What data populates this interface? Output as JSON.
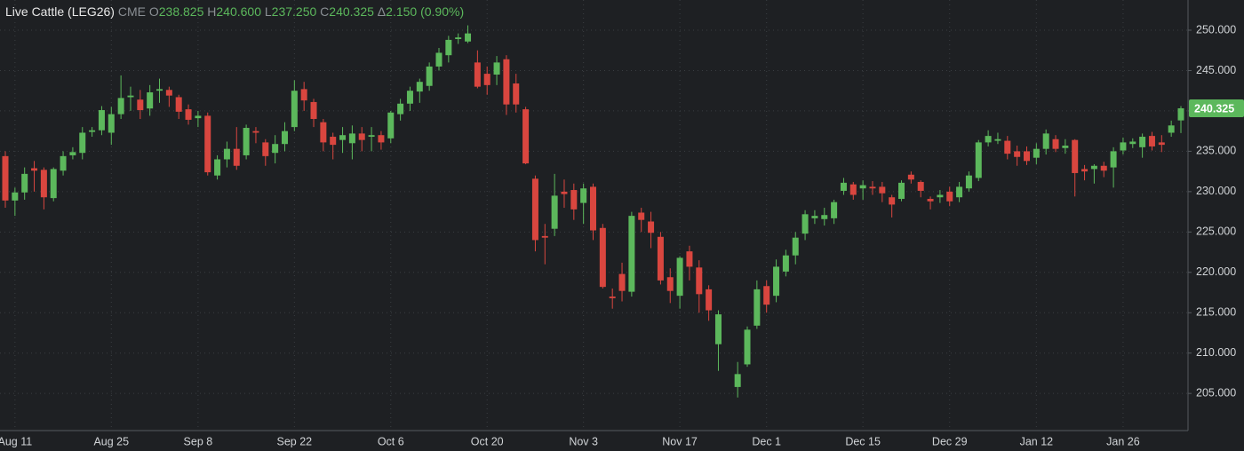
{
  "header": {
    "title": "Live Cattle (LEG26)",
    "exchange": "CME",
    "open_label": "O",
    "open": "238.825",
    "high_label": "H",
    "high": "240.600",
    "low_label": "L",
    "low": "237.250",
    "close_label": "C",
    "close": "240.325",
    "change_label": "Δ",
    "change": "2.150 (0.90%)"
  },
  "chart_data": {
    "type": "candlestick",
    "categories": [
      null,
      "Aug 11",
      null,
      null,
      null,
      null,
      null,
      null,
      null,
      null,
      null,
      "Aug 25",
      null,
      null,
      null,
      null,
      null,
      null,
      null,
      null,
      "Sep 8",
      null,
      null,
      null,
      null,
      null,
      null,
      null,
      null,
      null,
      "Sep 22",
      null,
      null,
      null,
      null,
      null,
      null,
      null,
      null,
      null,
      "Oct 6",
      null,
      null,
      null,
      null,
      null,
      null,
      null,
      null,
      null,
      "Oct 20",
      null,
      null,
      null,
      null,
      null,
      null,
      null,
      null,
      null,
      "Nov 3",
      null,
      null,
      null,
      null,
      null,
      null,
      null,
      null,
      null,
      "Nov 17",
      null,
      null,
      null,
      null,
      null,
      null,
      null,
      null,
      "Dec 1",
      null,
      null,
      null,
      null,
      null,
      null,
      null,
      null,
      null,
      "Dec 15",
      null,
      null,
      null,
      null,
      null,
      null,
      null,
      null,
      "Dec 29",
      null,
      null,
      null,
      null,
      null,
      null,
      null,
      null,
      "Jan 12",
      null,
      null,
      null,
      null,
      null,
      null,
      null,
      null,
      "Jan 26",
      null,
      null,
      null,
      null,
      null,
      null
    ],
    "open": [
      234.4,
      228.9,
      229.9,
      232.9,
      232.7,
      229.2,
      232.6,
      234.5,
      234.8,
      237.4,
      237.6,
      237.3,
      239.6,
      241.7,
      241.4,
      240.3,
      242.5,
      242.6,
      241.7,
      240.2,
      239.1,
      239.4,
      232,
      234,
      235.3,
      234.5,
      237.5,
      236.1,
      234.8,
      235.9,
      238,
      242.7,
      241.1,
      238.6,
      236.8,
      236.4,
      236,
      237.2,
      236.8,
      237,
      236.6,
      239.6,
      240.9,
      242.4,
      243.1,
      245.5,
      246.9,
      248.9,
      248.6,
      246,
      244.6,
      244.5,
      246.4,
      243.4,
      240.2,
      231.6,
      224.5,
      225.4,
      230,
      230.2,
      228.6,
      230.6,
      225.5,
      217,
      219.8,
      217.6,
      227.4,
      226.3,
      224.4,
      219.4,
      217.1,
      222.6,
      220.6,
      217.9,
      211.1,
      null,
      205.8,
      208.6,
      213.4,
      218.3,
      217.1,
      220.1,
      222.1,
      224.8,
      226.7,
      226.6,
      226.7,
      230.1,
      230.9,
      230.4,
      230.6,
      230.6,
      229.3,
      229.1,
      232.1,
      231.2,
      229.1,
      229.3,
      230,
      229.3,
      230.4,
      231.7,
      236.1,
      236.3,
      236.3,
      235,
      235,
      234.2,
      235.3,
      236.5,
      235.4,
      236.4,
      232.8,
      232.8,
      233.2,
      233,
      235.1,
      235.9,
      235.5,
      236.9,
      236.1,
      237.3,
      238.825
    ],
    "high": [
      235,
      230.5,
      233,
      233.8,
      233,
      233,
      235,
      235.5,
      238,
      238,
      240.6,
      240.5,
      244.4,
      243,
      242.6,
      243.2,
      244,
      243,
      242,
      240.8,
      240,
      239.8,
      234.5,
      236.2,
      238,
      238.3,
      238,
      236.5,
      237,
      238.6,
      243.8,
      243.6,
      241.5,
      239,
      237.3,
      238,
      238.2,
      238,
      238,
      237.5,
      240,
      241.5,
      243,
      244,
      246,
      247.8,
      249.3,
      249.6,
      250.6,
      247.5,
      245.5,
      246.8,
      246.9,
      244.6,
      240.5,
      232,
      226,
      232.2,
      231.5,
      231,
      231,
      231,
      226,
      218,
      221.2,
      227.5,
      228,
      227.5,
      225,
      220.5,
      222,
      223.3,
      221.5,
      218.4,
      215.3,
      null,
      208.9,
      213.3,
      219,
      219,
      221.6,
      222.8,
      225,
      227.7,
      227.7,
      228,
      229,
      231.7,
      231.2,
      231.4,
      231.3,
      231.2,
      229.6,
      231.4,
      232.5,
      231.4,
      229.4,
      230.2,
      230.6,
      231.2,
      232.5,
      236.4,
      237.6,
      237.3,
      236.9,
      235.7,
      235.6,
      236,
      237.7,
      237,
      236.5,
      236.5,
      233.3,
      233.4,
      233.7,
      235.5,
      236.7,
      236.6,
      237.2,
      237.4,
      237,
      238.8,
      240.6
    ],
    "low": [
      228,
      227,
      229,
      230,
      227.8,
      228.8,
      232,
      234,
      234,
      236.8,
      237,
      235.8,
      239,
      240,
      239,
      239.4,
      241,
      240.5,
      239,
      238.3,
      238,
      232,
      231.5,
      233,
      232.7,
      234,
      236,
      233.2,
      233.5,
      235,
      237.5,
      240,
      238,
      235,
      234,
      234.8,
      234,
      235,
      235,
      235.2,
      236,
      238.8,
      240,
      241,
      242.5,
      245,
      246,
      248.3,
      248.4,
      242.8,
      242,
      243.2,
      239.5,
      239.8,
      233.4,
      222.6,
      221,
      224.5,
      228,
      226.5,
      226,
      224,
      218,
      215.5,
      216.4,
      217,
      225,
      223,
      218.5,
      216.2,
      215.5,
      219,
      215,
      214,
      207.8,
      null,
      204.5,
      208.3,
      213,
      215,
      216.3,
      219.5,
      221,
      224,
      226,
      225.8,
      226,
      229.6,
      229,
      229,
      229.6,
      228.7,
      226.8,
      228.8,
      231,
      229.3,
      227.8,
      228.6,
      228.2,
      228.7,
      230,
      231.3,
      235.6,
      235.9,
      234,
      233.2,
      233.3,
      233.4,
      234.6,
      234.9,
      234.7,
      229.4,
      231.4,
      231,
      231.8,
      230.5,
      234.6,
      235.4,
      234.2,
      235.1,
      234.9,
      236.8,
      237.25
    ],
    "close": [
      228.9,
      229.9,
      232.2,
      232.6,
      229.3,
      232.8,
      234.4,
      234.9,
      237.3,
      237.6,
      240.1,
      239.6,
      241.6,
      241.9,
      240.1,
      242.3,
      242.7,
      241.9,
      239.9,
      238.9,
      239.4,
      232.4,
      234,
      235.3,
      233.2,
      237.9,
      237.3,
      234.4,
      235.9,
      237.5,
      242.5,
      241.3,
      239,
      236.1,
      235.8,
      237,
      237.2,
      236.4,
      237,
      236.1,
      239.8,
      240.9,
      242.5,
      243.6,
      245.5,
      247.2,
      248.8,
      249.1,
      249.6,
      243,
      243.2,
      246,
      240.8,
      240.8,
      233.5,
      224,
      224.3,
      229.5,
      229.7,
      227.8,
      230.4,
      225.2,
      218.2,
      216.8,
      217.7,
      227,
      226.5,
      224.9,
      219,
      217.7,
      221.8,
      220.7,
      217.3,
      215.3,
      214.8,
      null,
      207.4,
      212.9,
      217.9,
      216,
      220.7,
      222.1,
      224.3,
      227.2,
      227,
      227.1,
      228.7,
      231.1,
      229.6,
      230.8,
      230.4,
      229.8,
      228.4,
      231.1,
      231.5,
      230.1,
      228.8,
      229.6,
      228.8,
      230.6,
      232,
      236.1,
      236.9,
      236.5,
      234.7,
      234.3,
      233.8,
      235.3,
      237.2,
      235.3,
      235.7,
      232.3,
      232.5,
      233.2,
      232.6,
      235,
      236.1,
      236.2,
      236.8,
      235.6,
      235.8,
      238.2,
      240.325
    ],
    "up_color": "#5cb85c",
    "down_color": "#d9463f",
    "ylim": [
      200.4,
      253.74
    ],
    "yticks": [
      {
        "value": 205,
        "label": "205.000"
      },
      {
        "value": 210,
        "label": "210.000"
      },
      {
        "value": 215,
        "label": "215.000"
      },
      {
        "value": 220,
        "label": "220.000"
      },
      {
        "value": 225,
        "label": "225.000"
      },
      {
        "value": 230,
        "label": "230.000"
      },
      {
        "value": 235,
        "label": "235.000"
      },
      {
        "value": 240,
        "label": "240.000"
      },
      {
        "value": 245,
        "label": "245.000"
      },
      {
        "value": 250,
        "label": "250.000"
      }
    ],
    "grid": true
  }
}
